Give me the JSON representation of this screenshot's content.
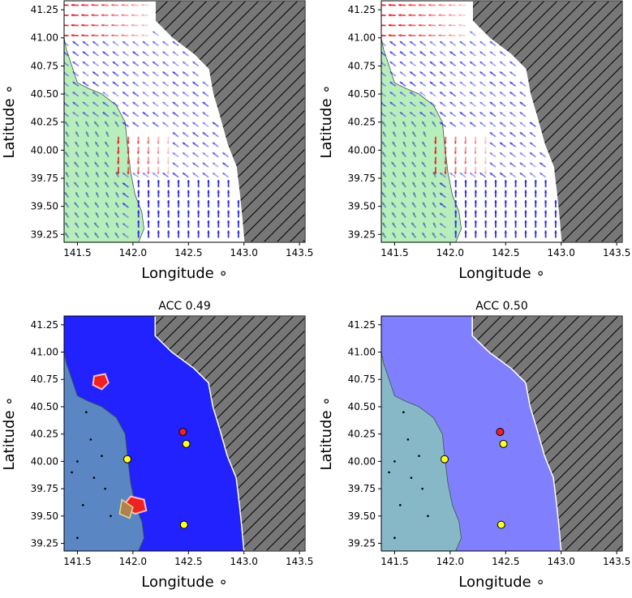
{
  "colors": {
    "land": "#777777",
    "coast_green": "#b8eebb",
    "deep_blue": "#2222ff",
    "shelf_blue": "#5a86c4",
    "light_blue": "#8080ff",
    "light_shelf": "#86b8c8",
    "arrow_red": "#e8101a",
    "arrow_blue": "#2a2ae8",
    "marker_red": "#ee2222",
    "marker_yellow": "#ffff22"
  },
  "chart_data": [
    {
      "type": "quiver",
      "title": "",
      "xlabel": "Longitude ∘",
      "ylabel": "Latitude ∘",
      "xlim": [
        141.38,
        143.55
      ],
      "ylim": [
        39.18,
        41.33
      ],
      "xticks": [
        "141.5",
        "142.0",
        "142.5",
        "143.0",
        "143.5"
      ],
      "yticks": [
        "39.25",
        "39.50",
        "39.75",
        "40.00",
        "40.25",
        "40.50",
        "40.75",
        "41.00",
        "41.25"
      ],
      "land": "hatched"
    },
    {
      "type": "quiver",
      "title": "",
      "xlabel": "Longitude ∘",
      "ylabel": "Latitude ∘",
      "xlim": [
        141.38,
        143.55
      ],
      "ylim": [
        39.18,
        41.33
      ],
      "xticks": [
        "141.5",
        "142.0",
        "142.5",
        "143.0",
        "143.5"
      ],
      "yticks": [
        "39.25",
        "39.50",
        "39.75",
        "40.00",
        "40.25",
        "40.50",
        "40.75",
        "41.00",
        "41.25"
      ],
      "land": "hatched"
    },
    {
      "type": "map",
      "title": "ACC 0.49",
      "xlabel": "Longitude ∘",
      "ylabel": "Latitude ∘",
      "xlim": [
        141.38,
        143.55
      ],
      "ylim": [
        39.18,
        41.33
      ],
      "xticks": [
        "141.5",
        "142.0",
        "142.5",
        "143.0",
        "143.5"
      ],
      "yticks": [
        "39.25",
        "39.50",
        "39.75",
        "40.00",
        "40.25",
        "40.50",
        "40.75",
        "41.00",
        "41.25"
      ],
      "markers": [
        {
          "lon": 142.45,
          "lat": 40.27,
          "color": "red"
        },
        {
          "lon": 142.48,
          "lat": 40.16,
          "color": "yellow"
        },
        {
          "lon": 141.95,
          "lat": 40.02,
          "color": "yellow"
        },
        {
          "lon": 142.46,
          "lat": 39.42,
          "color": "yellow"
        }
      ]
    },
    {
      "type": "map",
      "title": "ACC 0.50",
      "xlabel": "Longitude ∘",
      "ylabel": "Latitude ∘",
      "xlim": [
        141.38,
        143.55
      ],
      "ylim": [
        39.18,
        41.33
      ],
      "xticks": [
        "141.5",
        "142.0",
        "142.5",
        "143.0",
        "143.5"
      ],
      "yticks": [
        "39.25",
        "39.50",
        "39.75",
        "40.00",
        "40.25",
        "40.50",
        "40.75",
        "41.00",
        "41.25"
      ],
      "markers": [
        {
          "lon": 142.45,
          "lat": 40.27,
          "color": "red"
        },
        {
          "lon": 142.48,
          "lat": 40.16,
          "color": "yellow"
        },
        {
          "lon": 141.95,
          "lat": 40.02,
          "color": "yellow"
        },
        {
          "lon": 142.46,
          "lat": 39.42,
          "color": "yellow"
        }
      ]
    }
  ]
}
